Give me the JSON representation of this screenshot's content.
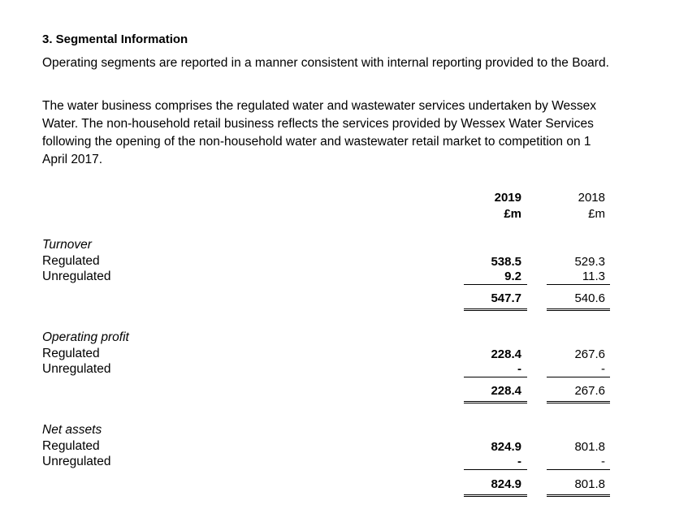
{
  "heading": "3. Segmental Information",
  "paragraphs": [
    "Operating segments are reported in a manner consistent with internal reporting provided to the Board.",
    "The water business comprises the regulated water and wastewater services undertaken by Wessex Water. The non-household retail business reflects the services provided by Wessex Water Services following the opening of the non-household water and wastewater retail market to competition on 1 April 2017."
  ],
  "columns": {
    "current": {
      "year": "2019",
      "unit": "£m"
    },
    "prior": {
      "year": "2018",
      "unit": "£m"
    }
  },
  "sections": [
    {
      "title": "Turnover",
      "rows": [
        {
          "label": "Regulated",
          "current": "538.5",
          "prior": "529.3"
        },
        {
          "label": "Unregulated",
          "current": "9.2",
          "prior": "11.3"
        }
      ],
      "total": {
        "current": "547.7",
        "prior": "540.6"
      }
    },
    {
      "title": "Operating profit",
      "rows": [
        {
          "label": "Regulated",
          "current": "228.4",
          "prior": "267.6"
        },
        {
          "label": "Unregulated",
          "current": "-",
          "prior": "-"
        }
      ],
      "total": {
        "current": "228.4",
        "prior": "267.6"
      }
    },
    {
      "title": "Net assets",
      "rows": [
        {
          "label": "Regulated",
          "current": "824.9",
          "prior": "801.8"
        },
        {
          "label": "Unregulated",
          "current": "-",
          "prior": "-"
        }
      ],
      "total": {
        "current": "824.9",
        "prior": "801.8"
      }
    }
  ]
}
